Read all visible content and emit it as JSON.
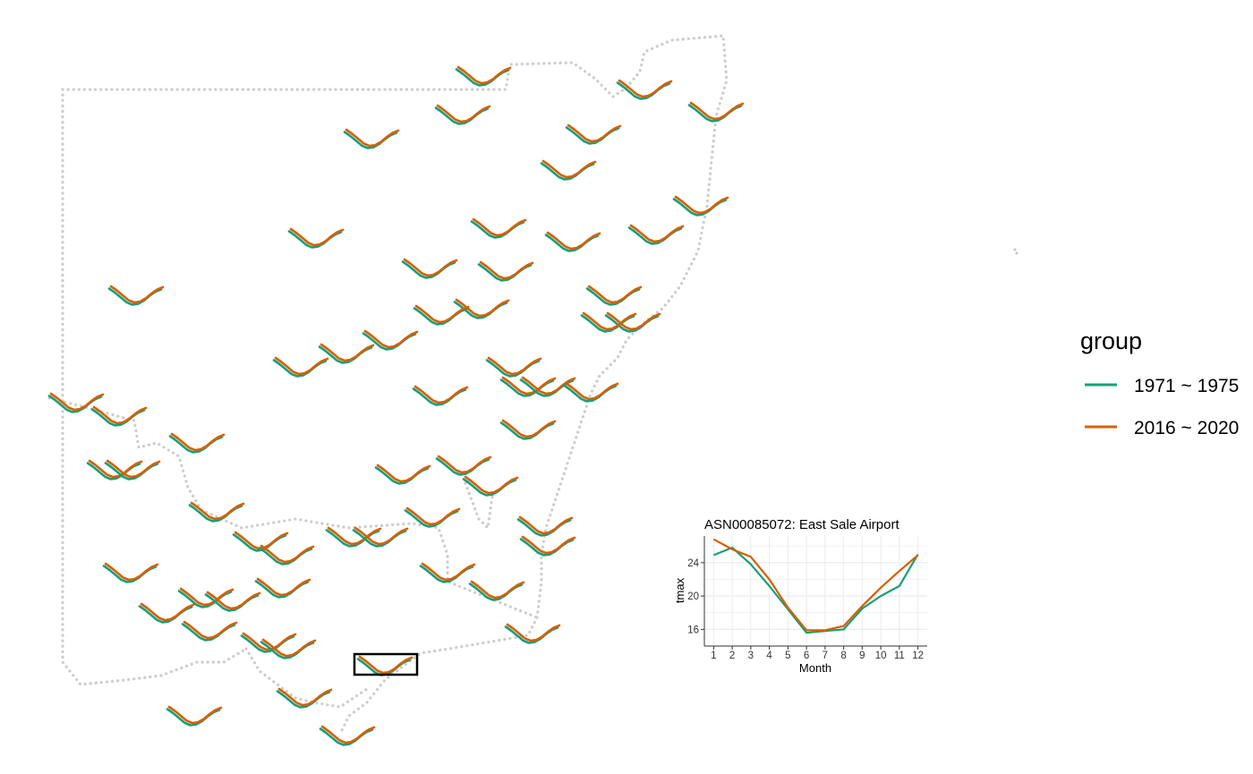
{
  "colors": {
    "group_1971": "#1b9e77",
    "group_2016": "#d95f02",
    "border": "#cccccc",
    "highlight_box": "#000000",
    "grid": "#ebebeb"
  },
  "legend": {
    "title": "group",
    "items": [
      {
        "label": "1971 ~ 1975",
        "color": "#1b9e77"
      },
      {
        "label": "2016 ~ 2020",
        "color": "#d95f02"
      }
    ]
  },
  "chart_data": [
    {
      "type": "line",
      "role": "map-glyphs",
      "description_of_series": "Monthly tmax glyphs at weather stations",
      "series": [
        {
          "name": "1971 ~ 1975",
          "values_note": "per-station monthly tmax glyph (U-shaped)"
        },
        {
          "name": "2016 ~ 2020",
          "values_note": "per-station monthly tmax glyph (U-shaped)"
        }
      ],
      "highlighted_station": "ASN00085072"
    },
    {
      "type": "line",
      "title": "ASN00085072: East Sale Airport",
      "xlabel": "Month",
      "ylabel": "tmax",
      "x": [
        1,
        2,
        3,
        4,
        5,
        6,
        7,
        8,
        9,
        10,
        11,
        12
      ],
      "xticks": [
        "1",
        "2",
        "3",
        "4",
        "5",
        "6",
        "7",
        "8",
        "9",
        "10",
        "11",
        "12"
      ],
      "yticks": [
        "16",
        "20",
        "24"
      ],
      "ylim": [
        14,
        27.2
      ],
      "grid": true,
      "series": [
        {
          "name": "1971 ~ 1975",
          "color": "#1b9e77",
          "values": [
            24.9,
            25.8,
            23.8,
            21.2,
            18.4,
            15.6,
            15.8,
            16.0,
            18.5,
            20.0,
            21.2,
            25.0
          ]
        },
        {
          "name": "2016 ~ 2020",
          "color": "#d95f02",
          "values": [
            26.8,
            25.6,
            24.7,
            22.0,
            18.6,
            15.9,
            15.9,
            16.4,
            18.8,
            21.0,
            23.0,
            24.9
          ]
        }
      ]
    }
  ]
}
